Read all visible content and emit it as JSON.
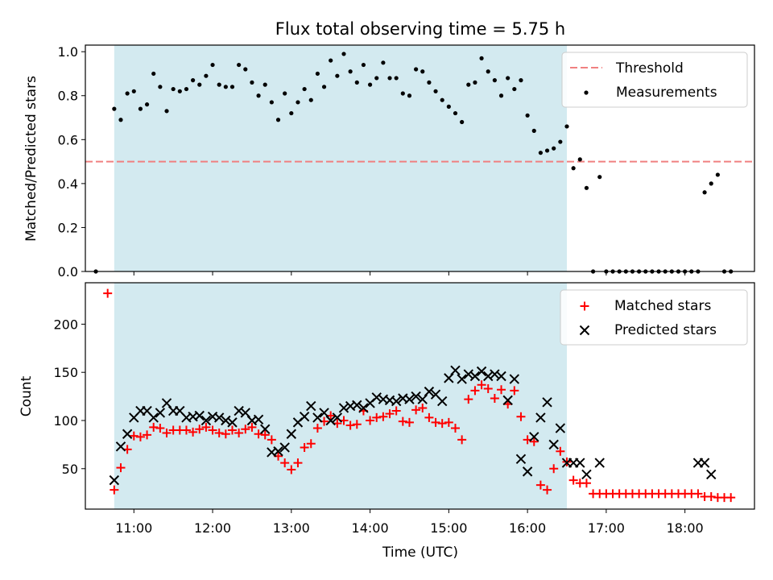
{
  "title": "Flux total observing time = 5.75 h",
  "colors": {
    "shade": "#d3eaf0",
    "threshold": "#f08080",
    "measurement": "#000000",
    "matched": "#ff0000",
    "predicted": "#000000"
  },
  "chart_data": [
    {
      "type": "scatter",
      "ylabel": "Matched/Predicted stars",
      "ylim": [
        0,
        1.03
      ],
      "yticks": [
        "0.0",
        "0.2",
        "0.4",
        "0.6",
        "0.8",
        "1.0"
      ],
      "threshold": 0.5,
      "legend": [
        "Threshold",
        "Measurements"
      ],
      "legend_position": "top-right",
      "series": [
        {
          "name": "Measurements",
          "x": [
            "10:31",
            "10:45",
            "10:50",
            "10:55",
            "11:00",
            "11:05",
            "11:10",
            "11:15",
            "11:20",
            "11:25",
            "11:30",
            "11:35",
            "11:40",
            "11:45",
            "11:50",
            "11:55",
            "12:00",
            "12:05",
            "12:10",
            "12:15",
            "12:20",
            "12:25",
            "12:30",
            "12:35",
            "12:40",
            "12:45",
            "12:50",
            "12:55",
            "13:00",
            "13:05",
            "13:10",
            "13:15",
            "13:20",
            "13:25",
            "13:30",
            "13:35",
            "13:40",
            "13:45",
            "13:50",
            "13:55",
            "14:00",
            "14:05",
            "14:10",
            "14:15",
            "14:20",
            "14:25",
            "14:30",
            "14:35",
            "14:40",
            "14:45",
            "14:50",
            "14:55",
            "15:00",
            "15:05",
            "15:10",
            "15:15",
            "15:20",
            "15:25",
            "15:30",
            "15:35",
            "15:40",
            "15:45",
            "15:50",
            "15:55",
            "16:00",
            "16:05",
            "16:10",
            "16:15",
            "16:20",
            "16:25",
            "16:30",
            "16:35",
            "16:40",
            "16:45",
            "16:50",
            "16:55",
            "17:00",
            "17:05",
            "17:10",
            "17:15",
            "17:20",
            "17:25",
            "17:30",
            "17:35",
            "17:40",
            "17:45",
            "17:50",
            "17:55",
            "18:00",
            "18:05",
            "18:10",
            "18:15",
            "18:20",
            "18:25",
            "18:30",
            "18:35"
          ],
          "values": [
            0.0,
            0.74,
            0.69,
            0.81,
            0.82,
            0.74,
            0.76,
            0.9,
            0.84,
            0.73,
            0.83,
            0.82,
            0.83,
            0.87,
            0.85,
            0.89,
            0.94,
            0.85,
            0.84,
            0.84,
            0.94,
            0.92,
            0.86,
            0.8,
            0.85,
            0.77,
            0.69,
            0.81,
            0.72,
            0.77,
            0.83,
            0.78,
            0.9,
            0.84,
            0.96,
            0.89,
            0.99,
            0.91,
            0.86,
            0.94,
            0.85,
            0.88,
            0.95,
            0.88,
            0.88,
            0.81,
            0.8,
            0.92,
            0.91,
            0.86,
            0.82,
            0.78,
            0.75,
            0.72,
            0.68,
            0.85,
            0.86,
            0.97,
            0.91,
            0.87,
            0.8,
            0.88,
            0.83,
            0.87,
            0.71,
            0.64,
            0.54,
            0.55,
            0.56,
            0.59,
            0.66,
            0.47,
            0.51,
            0.38,
            0.0,
            0.43,
            0.0,
            0.0,
            0.0,
            0.0,
            0.0,
            0.0,
            0.0,
            0.0,
            0.0,
            0.0,
            0.0,
            0.0,
            0.0,
            0.0,
            0.0,
            0.36,
            0.4,
            0.44,
            0.0,
            0.0
          ]
        }
      ]
    },
    {
      "type": "scatter",
      "xlabel": "Time (UTC)",
      "ylabel": "Count",
      "ylim": [
        8,
        243
      ],
      "yticks": [
        "50",
        "100",
        "150",
        "200"
      ],
      "xticks": [
        "11:00",
        "12:00",
        "13:00",
        "14:00",
        "15:00",
        "16:00",
        "17:00",
        "18:00"
      ],
      "shaded_interval": [
        "10:45",
        "16:30"
      ],
      "legend": [
        "Matched stars",
        "Predicted stars"
      ],
      "legend_position": "top-right",
      "series": [
        {
          "name": "Matched stars",
          "x": [
            "10:40",
            "10:45",
            "10:50",
            "10:55",
            "11:00",
            "11:05",
            "11:10",
            "11:15",
            "11:20",
            "11:25",
            "11:30",
            "11:35",
            "11:40",
            "11:45",
            "11:50",
            "11:55",
            "12:00",
            "12:05",
            "12:10",
            "12:15",
            "12:20",
            "12:25",
            "12:30",
            "12:35",
            "12:40",
            "12:45",
            "12:50",
            "12:55",
            "13:00",
            "13:05",
            "13:10",
            "13:15",
            "13:20",
            "13:25",
            "13:30",
            "13:35",
            "13:40",
            "13:45",
            "13:50",
            "13:55",
            "14:00",
            "14:05",
            "14:10",
            "14:15",
            "14:20",
            "14:25",
            "14:30",
            "14:35",
            "14:40",
            "14:45",
            "14:50",
            "14:55",
            "15:00",
            "15:05",
            "15:10",
            "15:15",
            "15:20",
            "15:25",
            "15:30",
            "15:35",
            "15:40",
            "15:45",
            "15:50",
            "15:55",
            "16:00",
            "16:05",
            "16:10",
            "16:15",
            "16:20",
            "16:25",
            "16:30",
            "16:35",
            "16:40",
            "16:45",
            "16:50",
            "16:55",
            "17:00",
            "17:05",
            "17:10",
            "17:15",
            "17:20",
            "17:25",
            "17:30",
            "17:35",
            "17:40",
            "17:45",
            "17:50",
            "17:55",
            "18:00",
            "18:05",
            "18:10",
            "18:15",
            "18:20",
            "18:25",
            "18:30",
            "18:35"
          ],
          "values": [
            232,
            28,
            51,
            70,
            84,
            83,
            85,
            93,
            92,
            87,
            90,
            90,
            90,
            88,
            91,
            93,
            90,
            87,
            86,
            90,
            87,
            91,
            93,
            86,
            85,
            80,
            63,
            56,
            49,
            56,
            72,
            76,
            92,
            99,
            105,
            97,
            100,
            95,
            96,
            110,
            100,
            103,
            104,
            107,
            110,
            99,
            98,
            111,
            113,
            103,
            98,
            97,
            98,
            92,
            80,
            122,
            131,
            137,
            133,
            123,
            132,
            117,
            131,
            104,
            80,
            78,
            33,
            28,
            50,
            68,
            57,
            38,
            35,
            35,
            24,
            24,
            24,
            24,
            24,
            24,
            24,
            24,
            24,
            24,
            24,
            24,
            24,
            24,
            24,
            24,
            24,
            21,
            21,
            20,
            20,
            20
          ]
        },
        {
          "name": "Predicted stars",
          "x": [
            "10:45",
            "10:50",
            "10:55",
            "11:00",
            "11:05",
            "11:10",
            "11:15",
            "11:20",
            "11:25",
            "11:30",
            "11:35",
            "11:40",
            "11:45",
            "11:50",
            "11:55",
            "12:00",
            "12:05",
            "12:10",
            "12:15",
            "12:20",
            "12:25",
            "12:30",
            "12:35",
            "12:40",
            "12:45",
            "12:50",
            "12:55",
            "13:00",
            "13:05",
            "13:10",
            "13:15",
            "13:20",
            "13:25",
            "13:30",
            "13:35",
            "13:40",
            "13:45",
            "13:50",
            "13:55",
            "14:00",
            "14:05",
            "14:10",
            "14:15",
            "14:20",
            "14:25",
            "14:30",
            "14:35",
            "14:40",
            "14:45",
            "14:50",
            "14:55",
            "15:00",
            "15:05",
            "15:10",
            "15:15",
            "15:20",
            "15:25",
            "15:30",
            "15:35",
            "15:40",
            "15:45",
            "15:50",
            "15:55",
            "16:00",
            "16:05",
            "16:10",
            "16:15",
            "16:20",
            "16:25",
            "16:30",
            "16:35",
            "16:40",
            "16:45",
            "16:55",
            "18:10",
            "18:15",
            "18:20"
          ],
          "values": [
            38,
            73,
            86,
            103,
            110,
            110,
            103,
            108,
            118,
            110,
            110,
            103,
            104,
            105,
            100,
            104,
            103,
            100,
            98,
            110,
            108,
            100,
            101,
            91,
            67,
            68,
            72,
            86,
            98,
            104,
            115,
            103,
            108,
            100,
            103,
            113,
            115,
            116,
            113,
            118,
            124,
            122,
            121,
            120,
            123,
            122,
            125,
            122,
            130,
            127,
            120,
            144,
            152,
            143,
            148,
            146,
            151,
            146,
            148,
            146,
            121,
            143,
            60,
            47,
            83,
            103,
            119,
            75,
            92,
            56,
            56,
            56,
            44,
            56,
            56,
            56,
            44
          ]
        }
      ]
    }
  ]
}
